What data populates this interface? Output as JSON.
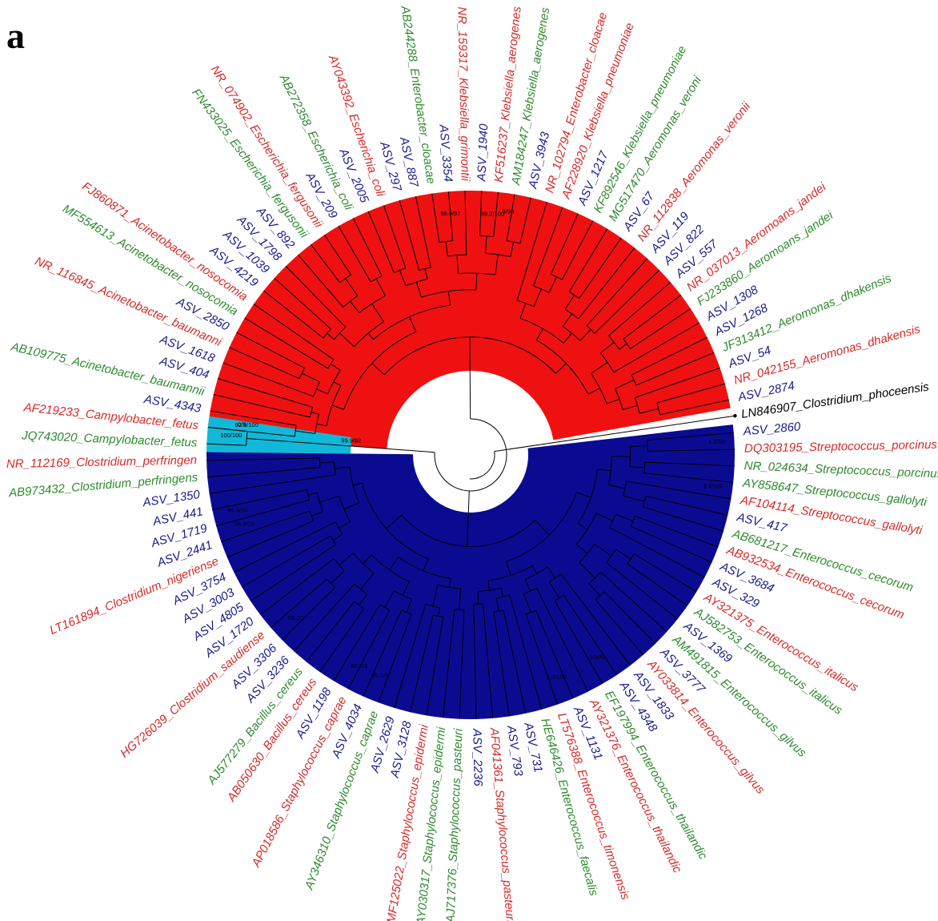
{
  "panel_label": "a",
  "colors": {
    "asv": "#1a1a8c",
    "reference_red": "#d42a2a",
    "reference_green": "#2e8a2e",
    "outgroup": "#000000",
    "clade_red": "#ef1111",
    "clade_cyan": "#12b8d8",
    "clade_blue": "#0b0b92",
    "branch": "#000000"
  },
  "leaves": [
    {
      "label": "AF219233_Campylobacter_fetus",
      "group": "reference_red"
    },
    {
      "label": "ASV_4343",
      "group": "asv"
    },
    {
      "label": "AB109775_Acinetobacter_baumannii",
      "group": "reference_green"
    },
    {
      "label": "ASV_404",
      "group": "asv"
    },
    {
      "label": "ASV_1618",
      "group": "asv"
    },
    {
      "label": "NR_116845_Acinetobacter_baumanni",
      "group": "reference_red"
    },
    {
      "label": "ASV_2850",
      "group": "asv"
    },
    {
      "label": "MF554613_Acinetobacter_nosocomia",
      "group": "reference_green"
    },
    {
      "label": "FJ860871_Acinetobacter_nosocomia",
      "group": "reference_red"
    },
    {
      "label": "ASV_4219",
      "group": "asv"
    },
    {
      "label": "ASV_1039",
      "group": "asv"
    },
    {
      "label": "ASV_1798",
      "group": "asv"
    },
    {
      "label": "ASV_892",
      "group": "asv"
    },
    {
      "label": "FN433025_Escherichia_fergusonii",
      "group": "reference_green"
    },
    {
      "label": "NR_074902_Escherichia_fergusonii",
      "group": "reference_red"
    },
    {
      "label": "ASV_209",
      "group": "asv"
    },
    {
      "label": "AB272358_Escherichia_coli",
      "group": "reference_green"
    },
    {
      "label": "ASV_2005",
      "group": "asv"
    },
    {
      "label": "AY043392_Escherichia_coli",
      "group": "reference_red"
    },
    {
      "label": "ASV_297",
      "group": "asv"
    },
    {
      "label": "ASV_887",
      "group": "asv"
    },
    {
      "label": "AB244288_Enterobacter_cloacae",
      "group": "reference_green"
    },
    {
      "label": "ASV_3354",
      "group": "asv"
    },
    {
      "label": "NR_159317_Klebsiella_grimontii",
      "group": "reference_red"
    },
    {
      "label": "ASV_1940",
      "group": "asv"
    },
    {
      "label": "KF516237_Klebsiella_aerogenes",
      "group": "reference_red"
    },
    {
      "label": "AM184247_Klebsiella_aerogenes",
      "group": "reference_green"
    },
    {
      "label": "ASV_3943",
      "group": "asv"
    },
    {
      "label": "NR_102794_Enterobacter_cloacae",
      "group": "reference_red"
    },
    {
      "label": "AF228920_Klebsiella_pneumoniae",
      "group": "reference_red"
    },
    {
      "label": "ASV_1217",
      "group": "asv"
    },
    {
      "label": "KF892546_Klebsiella_pneumoniae",
      "group": "reference_green"
    },
    {
      "label": "MG517470_Aeromonas_veroni",
      "group": "reference_green"
    },
    {
      "label": "ASV_67",
      "group": "asv"
    },
    {
      "label": "NR_112838_Aeromonas_veronii",
      "group": "reference_red"
    },
    {
      "label": "ASV_119",
      "group": "asv"
    },
    {
      "label": "ASV_822",
      "group": "asv"
    },
    {
      "label": "ASV_557",
      "group": "asv"
    },
    {
      "label": "NR_037013_Aeromoans_jandei",
      "group": "reference_red"
    },
    {
      "label": "FJ233860_Aeromoans_jandei",
      "group": "reference_green"
    },
    {
      "label": "ASV_1308",
      "group": "asv"
    },
    {
      "label": "ASV_1268",
      "group": "asv"
    },
    {
      "label": "JF313412_Aeromonas_dhakensis",
      "group": "reference_green"
    },
    {
      "label": "ASV_54",
      "group": "asv"
    },
    {
      "label": "NR_042155_Aeromonas_dhakensis",
      "group": "reference_red"
    },
    {
      "label": "ASV_2874",
      "group": "asv"
    },
    {
      "label": "LN846907_Clostridium_phoceensis",
      "group": "outgroup"
    },
    {
      "label": "ASV_2860",
      "group": "asv"
    },
    {
      "label": "DQ303195_Streptococcus_porcinus",
      "group": "reference_red"
    },
    {
      "label": "NR_024634_Streptococcus_porcinus",
      "group": "reference_green"
    },
    {
      "label": "AY858647_Streptococcus_gallolyti",
      "group": "reference_green"
    },
    {
      "label": "AF104114_Streptococcus_gallolyti",
      "group": "reference_red"
    },
    {
      "label": "ASV_417",
      "group": "asv"
    },
    {
      "label": "AB681217_Enterococcus_cecorum",
      "group": "reference_green"
    },
    {
      "label": "AB932534_Enterococcus_cecorum",
      "group": "reference_red"
    },
    {
      "label": "ASV_3684",
      "group": "asv"
    },
    {
      "label": "ASV_329",
      "group": "asv"
    },
    {
      "label": "AY321375_Enterococcus_italicus",
      "group": "reference_red"
    },
    {
      "label": "AJ582753_Enterococcus_italicus",
      "group": "reference_green"
    },
    {
      "label": "ASV_1369",
      "group": "asv"
    },
    {
      "label": "AM491815_Enterococcus_gilvus",
      "group": "reference_green"
    },
    {
      "label": "ASV_3777",
      "group": "asv"
    },
    {
      "label": "AY033814_Enterococcus_gilvus",
      "group": "reference_red"
    },
    {
      "label": "ASV_1833",
      "group": "asv"
    },
    {
      "label": "ASV_4348",
      "group": "asv"
    },
    {
      "label": "EF197994_Enterococcus_thailandic",
      "group": "reference_green"
    },
    {
      "label": "AY321376_Enterococcus_thailandic",
      "group": "reference_red"
    },
    {
      "label": "ASV_1131",
      "group": "asv"
    },
    {
      "label": "LT576388_Enterococcus_timonensis",
      "group": "reference_red"
    },
    {
      "label": "HE646426_Enterococcus_faecalis",
      "group": "reference_green"
    },
    {
      "label": "ASV_731",
      "group": "asv"
    },
    {
      "label": "ASV_793",
      "group": "asv"
    },
    {
      "label": "AF041361_Staphylococcus_pasteuri",
      "group": "reference_red"
    },
    {
      "label": "ASV_2236",
      "group": "asv"
    },
    {
      "label": "AJ717376_Staphylococcus_pasteuri",
      "group": "reference_green"
    },
    {
      "label": "AY030317_Staphylococcus_epidermi",
      "group": "reference_green"
    },
    {
      "label": "MF125022_Staphylococcus_epidermi",
      "group": "reference_red"
    },
    {
      "label": "ASV_3128",
      "group": "asv"
    },
    {
      "label": "ASV_2629",
      "group": "asv"
    },
    {
      "label": "AY346310_Staphylococcus_caprae",
      "group": "reference_green"
    },
    {
      "label": "ASV_4034",
      "group": "asv"
    },
    {
      "label": "AP018586_Staphylococcus_caprae",
      "group": "reference_red"
    },
    {
      "label": "ASV_1198",
      "group": "asv"
    },
    {
      "label": "AB050630_Bacillus_cereus",
      "group": "reference_red"
    },
    {
      "label": "AJ577279_Bacillus_cereus",
      "group": "reference_green"
    },
    {
      "label": "ASV_3236",
      "group": "asv"
    },
    {
      "label": "ASV_3306",
      "group": "asv"
    },
    {
      "label": "HG726039_Clostridium_saudiense",
      "group": "reference_red"
    },
    {
      "label": "ASV_1720",
      "group": "asv"
    },
    {
      "label": "ASV_4805",
      "group": "asv"
    },
    {
      "label": "ASV_3003",
      "group": "asv"
    },
    {
      "label": "ASV_3754",
      "group": "asv"
    },
    {
      "label": "LT161894_Clostridium_nigeriense",
      "group": "reference_red"
    },
    {
      "label": "ASV_2441",
      "group": "asv"
    },
    {
      "label": "ASV_1719",
      "group": "asv"
    },
    {
      "label": "ASV_441",
      "group": "asv"
    },
    {
      "label": "ASV_1350",
      "group": "asv"
    },
    {
      "label": "AB973432_Clostridium_perfringens",
      "group": "reference_green"
    },
    {
      "label": "NR_112169_Clostridium_perfringen",
      "group": "reference_red"
    },
    {
      "label": "JQ743020_Campylobacter_fetus",
      "group": "reference_green"
    }
  ],
  "support_values": [
    "100/100",
    "92.8/100",
    "99.9/82",
    "0/5",
    "96.9/10",
    "95.9/10",
    "86.1/8",
    "80.5/1",
    "1.3/99",
    "3.4/100",
    "3/96",
    "89.2/100",
    "98.9/97",
    "1/100",
    "1.7/100",
    "96.1/1"
  ]
}
